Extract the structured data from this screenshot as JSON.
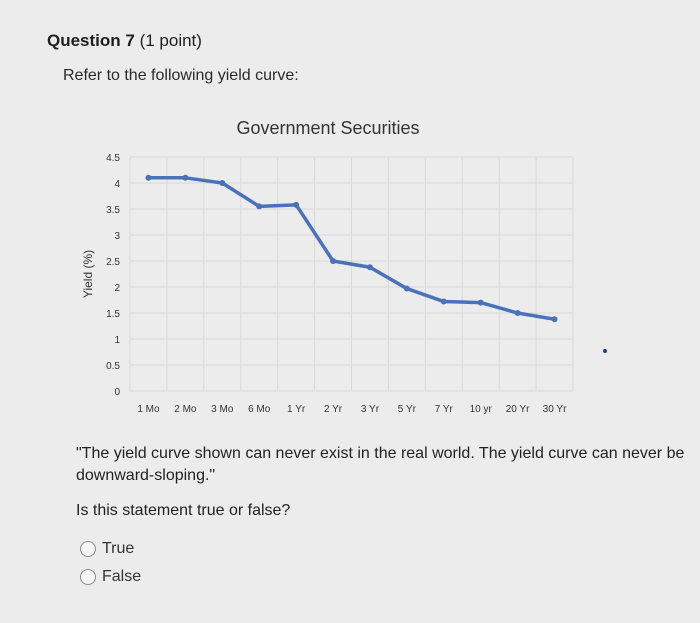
{
  "question": {
    "title_bold": "Question 7",
    "title_rest": " (1 point)",
    "prompt": "Refer to the following yield curve:",
    "statement": "\"The yield curve shown can never exist in the real world. The yield curve can never be downward-sloping.\"",
    "ask": "Is this statement true or false?",
    "options": [
      {
        "label": "True"
      },
      {
        "label": "False"
      }
    ]
  },
  "chart_data": {
    "type": "line",
    "title": "Government Securities",
    "ylabel": "Yield (%)",
    "xlabel": "",
    "categories": [
      "1 Mo",
      "2 Mo",
      "3 Mo",
      "6 Mo",
      "1 Yr",
      "2 Yr",
      "3 Yr",
      "5 Yr",
      "7 Yr",
      "10 yr",
      "20 Yr",
      "30 Yr"
    ],
    "series": [
      {
        "values": [
          4.1,
          4.1,
          4.0,
          3.55,
          3.58,
          2.5,
          2.38,
          1.97,
          1.72,
          1.7,
          1.5,
          1.38
        ]
      }
    ],
    "yticks": [
      "0",
      "0.5",
      "1",
      "1.5",
      "2",
      "2.5",
      "3",
      "3.5",
      "4",
      "4.5"
    ],
    "ylim": [
      0,
      4.5
    ],
    "grid": true,
    "colors": {
      "line": "#4a72b8",
      "grid": "#d9d9d9"
    }
  }
}
